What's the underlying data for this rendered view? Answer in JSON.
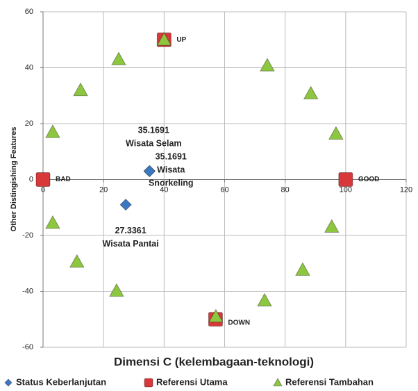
{
  "chart_data": {
    "type": "scatter",
    "xlabel": "Dimensi C (kelembagaan-teknologi)",
    "ylabel": "Other Distingishing Features",
    "xlim": [
      0,
      120
    ],
    "xticks": [
      0,
      20,
      40,
      60,
      80,
      100,
      120
    ],
    "ylim": [
      -60,
      60
    ],
    "yticks": [
      -60,
      -40,
      -20,
      0,
      20,
      40,
      60
    ],
    "grid": true,
    "legend": "bottom",
    "series": [
      {
        "name": "Status Keberlanjutan",
        "color": "#3a78c2",
        "marker": "diamond",
        "x": [
          35.1691,
          35.1691,
          27.3361
        ],
        "values": [
          3,
          3,
          -9
        ],
        "labels": [
          [
            "Wisata  Selam"
          ],
          [
            "Wisata",
            "Snorkeling"
          ],
          [
            "Wisata Pantai"
          ]
        ]
      },
      {
        "name": "Referensi Utama",
        "color": "#d9383a",
        "marker": "square",
        "x": [
          0,
          100,
          40,
          57
        ],
        "values": [
          0,
          0,
          50,
          -50
        ],
        "labels": [
          "BAD",
          "GOOD",
          "UP",
          "DOWN"
        ]
      },
      {
        "name": "Referensi Tambahan",
        "color": "#8dc63f",
        "marker": "triangle",
        "x": [
          40,
          25,
          12.4,
          3.2,
          3.2,
          11.2,
          24.3,
          57.1,
          73.2,
          85.8,
          95.4,
          96.8,
          88.5,
          74.1
        ],
        "values": [
          50,
          43,
          32,
          17,
          -15.5,
          -29.4,
          -39.8,
          -49,
          -43.3,
          -32.3,
          -16.9,
          16.4,
          30.8,
          40.8
        ]
      }
    ]
  }
}
